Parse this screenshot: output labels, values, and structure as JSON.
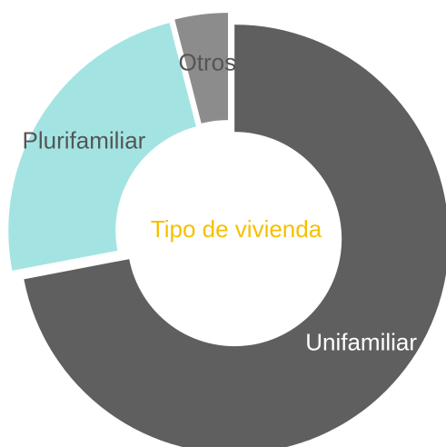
{
  "chart_data": {
    "type": "donut",
    "title": "Tipo de vivienda",
    "categories": [
      "Unifamiliar",
      "Plurifamiliar",
      "Otros"
    ],
    "values": [
      72,
      24,
      4
    ],
    "colors": [
      "#5f5f5f",
      "#a3e4e3",
      "#8c8c8c"
    ]
  }
}
